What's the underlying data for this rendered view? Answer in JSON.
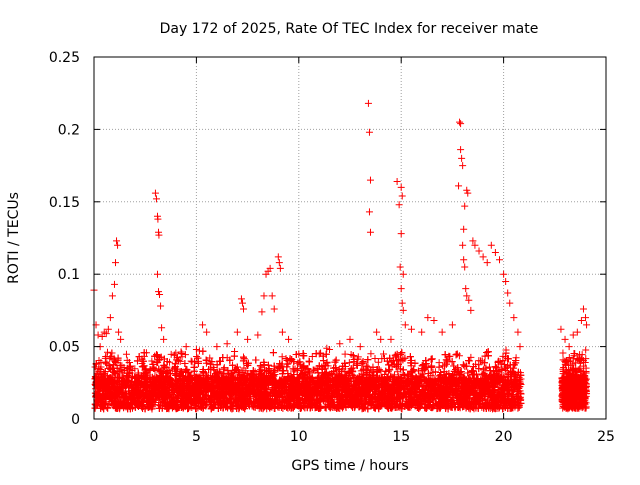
{
  "chart_data": {
    "type": "scatter",
    "title": "Day 172 of 2025, Rate Of TEC Index for receiver mate",
    "xlabel": "GPS time / hours",
    "ylabel": "ROTI / TECUs",
    "xlim": [
      0,
      25
    ],
    "ylim": [
      0,
      0.25
    ],
    "x_ticks": [
      "0",
      "5",
      "10",
      "15",
      "20",
      "25"
    ],
    "y_ticks": [
      "0",
      "0.05",
      "0.1",
      "0.15",
      "0.2",
      "0.25"
    ],
    "grid": true,
    "marker": "plus",
    "color": "#ff0000",
    "series": [
      {
        "name": "",
        "points": [
          [
            0.0,
            0.089
          ],
          [
            0.1,
            0.065
          ],
          [
            0.2,
            0.058
          ],
          [
            0.3,
            0.05
          ],
          [
            0.4,
            0.057
          ],
          [
            0.5,
            0.06
          ],
          [
            0.6,
            0.059
          ],
          [
            0.7,
            0.062
          ],
          [
            0.8,
            0.07
          ],
          [
            0.9,
            0.085
          ],
          [
            1.0,
            0.093
          ],
          [
            1.05,
            0.108
          ],
          [
            1.1,
            0.123
          ],
          [
            1.15,
            0.12
          ],
          [
            1.2,
            0.06
          ],
          [
            1.3,
            0.055
          ],
          [
            3.0,
            0.156
          ],
          [
            3.05,
            0.152
          ],
          [
            3.1,
            0.14
          ],
          [
            3.12,
            0.138
          ],
          [
            3.15,
            0.129
          ],
          [
            3.17,
            0.127
          ],
          [
            3.1,
            0.1
          ],
          [
            3.15,
            0.088
          ],
          [
            3.2,
            0.086
          ],
          [
            3.25,
            0.078
          ],
          [
            3.3,
            0.063
          ],
          [
            3.4,
            0.055
          ],
          [
            4.3,
            0.043
          ],
          [
            4.5,
            0.05
          ],
          [
            5.0,
            0.048
          ],
          [
            5.3,
            0.065
          ],
          [
            5.5,
            0.06
          ],
          [
            6.0,
            0.05
          ],
          [
            6.5,
            0.052
          ],
          [
            7.0,
            0.06
          ],
          [
            7.2,
            0.083
          ],
          [
            7.25,
            0.08
          ],
          [
            7.3,
            0.076
          ],
          [
            7.5,
            0.055
          ],
          [
            8.0,
            0.058
          ],
          [
            8.2,
            0.074
          ],
          [
            8.3,
            0.085
          ],
          [
            8.4,
            0.1
          ],
          [
            8.5,
            0.102
          ],
          [
            8.6,
            0.104
          ],
          [
            8.7,
            0.085
          ],
          [
            8.8,
            0.076
          ],
          [
            9.0,
            0.112
          ],
          [
            9.05,
            0.108
          ],
          [
            9.1,
            0.104
          ],
          [
            9.2,
            0.06
          ],
          [
            9.5,
            0.055
          ],
          [
            10.0,
            0.045
          ],
          [
            10.5,
            0.04
          ],
          [
            11.0,
            0.045
          ],
          [
            11.5,
            0.048
          ],
          [
            12.0,
            0.052
          ],
          [
            12.5,
            0.055
          ],
          [
            13.0,
            0.05
          ],
          [
            13.4,
            0.218
          ],
          [
            13.45,
            0.198
          ],
          [
            13.5,
            0.165
          ],
          [
            13.45,
            0.143
          ],
          [
            13.5,
            0.129
          ],
          [
            13.8,
            0.06
          ],
          [
            14.0,
            0.055
          ],
          [
            14.5,
            0.055
          ],
          [
            14.8,
            0.164
          ],
          [
            14.9,
            0.148
          ],
          [
            15.0,
            0.16
          ],
          [
            15.05,
            0.154
          ],
          [
            15.0,
            0.128
          ],
          [
            14.95,
            0.105
          ],
          [
            15.1,
            0.1
          ],
          [
            15.0,
            0.09
          ],
          [
            15.05,
            0.08
          ],
          [
            15.1,
            0.075
          ],
          [
            15.2,
            0.065
          ],
          [
            15.5,
            0.062
          ],
          [
            16.0,
            0.06
          ],
          [
            16.3,
            0.07
          ],
          [
            16.6,
            0.068
          ],
          [
            17.0,
            0.06
          ],
          [
            17.5,
            0.065
          ],
          [
            17.8,
            0.161
          ],
          [
            17.85,
            0.205
          ],
          [
            17.9,
            0.204
          ],
          [
            17.9,
            0.186
          ],
          [
            17.95,
            0.18
          ],
          [
            18.0,
            0.175
          ],
          [
            18.2,
            0.158
          ],
          [
            18.25,
            0.156
          ],
          [
            18.1,
            0.147
          ],
          [
            18.05,
            0.131
          ],
          [
            18.0,
            0.12
          ],
          [
            18.05,
            0.11
          ],
          [
            18.1,
            0.105
          ],
          [
            18.15,
            0.09
          ],
          [
            18.2,
            0.085
          ],
          [
            18.3,
            0.082
          ],
          [
            18.4,
            0.075
          ],
          [
            18.5,
            0.123
          ],
          [
            18.6,
            0.12
          ],
          [
            18.8,
            0.116
          ],
          [
            19.0,
            0.112
          ],
          [
            19.2,
            0.108
          ],
          [
            19.4,
            0.12
          ],
          [
            19.6,
            0.115
          ],
          [
            19.8,
            0.11
          ],
          [
            20.0,
            0.1
          ],
          [
            20.1,
            0.095
          ],
          [
            20.2,
            0.087
          ],
          [
            20.3,
            0.08
          ],
          [
            20.5,
            0.07
          ],
          [
            20.7,
            0.06
          ],
          [
            20.8,
            0.05
          ],
          [
            22.8,
            0.062
          ],
          [
            23.0,
            0.055
          ],
          [
            23.2,
            0.05
          ],
          [
            23.4,
            0.058
          ],
          [
            23.6,
            0.06
          ],
          [
            23.8,
            0.068
          ],
          [
            23.9,
            0.076
          ],
          [
            24.0,
            0.07
          ],
          [
            24.05,
            0.065
          ]
        ]
      }
    ]
  }
}
